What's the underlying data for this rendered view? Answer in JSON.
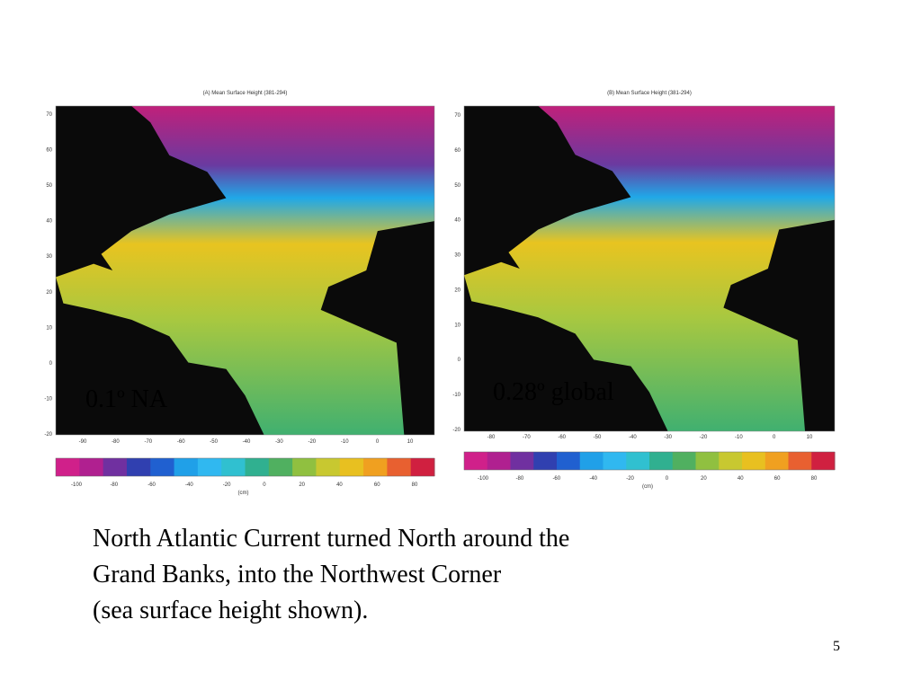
{
  "panels": [
    {
      "title": "(A) Mean Surface Height (381-294)",
      "overlay_label": "0.1º NA",
      "lat_ticks": [
        "70",
        "60",
        "50",
        "40",
        "30",
        "20",
        "10",
        "0",
        "-10",
        "-20"
      ],
      "lon_ticks": [
        "-90",
        "-80",
        "-70",
        "-60",
        "-50",
        "-40",
        "-30",
        "-20",
        "-10",
        "0",
        "10"
      ],
      "colorbar_ticks": [
        "-100",
        "-80",
        "-60",
        "-40",
        "-20",
        "0",
        "20",
        "40",
        "60",
        "80"
      ],
      "colorbar_unit": "(cm)"
    },
    {
      "title": "(B) Mean Surface Height (381-294)",
      "overlay_label": "0.28º global",
      "lat_ticks": [
        "70",
        "60",
        "50",
        "40",
        "30",
        "20",
        "10",
        "0",
        "-10",
        "-20"
      ],
      "lon_ticks": [
        "-80",
        "-70",
        "-60",
        "-50",
        "-40",
        "-30",
        "-20",
        "-10",
        "0",
        "10"
      ],
      "colorbar_ticks": [
        "-100",
        "-80",
        "-60",
        "-40",
        "-20",
        "0",
        "20",
        "40",
        "60",
        "80"
      ],
      "colorbar_unit": "(cm)"
    }
  ],
  "caption": [
    "North Atlantic Current turned North around the",
    "Grand Banks, into the Northwest Corner",
    "(sea surface height shown)."
  ],
  "page_number": "5"
}
